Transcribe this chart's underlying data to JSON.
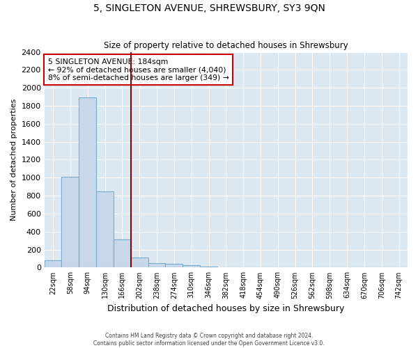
{
  "title": "5, SINGLETON AVENUE, SHREWSBURY, SY3 9QN",
  "subtitle": "Size of property relative to detached houses in Shrewsbury",
  "xlabel": "Distribution of detached houses by size in Shrewsbury",
  "ylabel": "Number of detached properties",
  "bar_labels": [
    "22sqm",
    "58sqm",
    "94sqm",
    "130sqm",
    "166sqm",
    "202sqm",
    "238sqm",
    "274sqm",
    "310sqm",
    "346sqm",
    "382sqm",
    "418sqm",
    "454sqm",
    "490sqm",
    "526sqm",
    "562sqm",
    "598sqm",
    "634sqm",
    "670sqm",
    "706sqm",
    "742sqm"
  ],
  "bar_values": [
    80,
    1010,
    1890,
    850,
    315,
    115,
    50,
    40,
    25,
    10,
    0,
    0,
    0,
    0,
    0,
    0,
    0,
    0,
    0,
    0,
    0
  ],
  "bar_color": "#c8d8ea",
  "bar_edge_color": "#7aaac8",
  "red_line_color": "#8b0000",
  "annotation_title": "5 SINGLETON AVENUE: 184sqm",
  "annotation_line1": "← 92% of detached houses are smaller (4,040)",
  "annotation_line2": "8% of semi-detached houses are larger (349) →",
  "annotation_box_color": "#ffffff",
  "annotation_box_edge": "#cc0000",
  "ylim": [
    0,
    2400
  ],
  "yticks": [
    0,
    200,
    400,
    600,
    800,
    1000,
    1200,
    1400,
    1600,
    1800,
    2000,
    2200,
    2400
  ],
  "plot_bg": "#dce8f2",
  "grid_color": "#ffffff",
  "footer_line1": "Contains HM Land Registry data © Crown copyright and database right 2024.",
  "footer_line2": "Contains public sector information licensed under the Open Government Licence v3.0."
}
